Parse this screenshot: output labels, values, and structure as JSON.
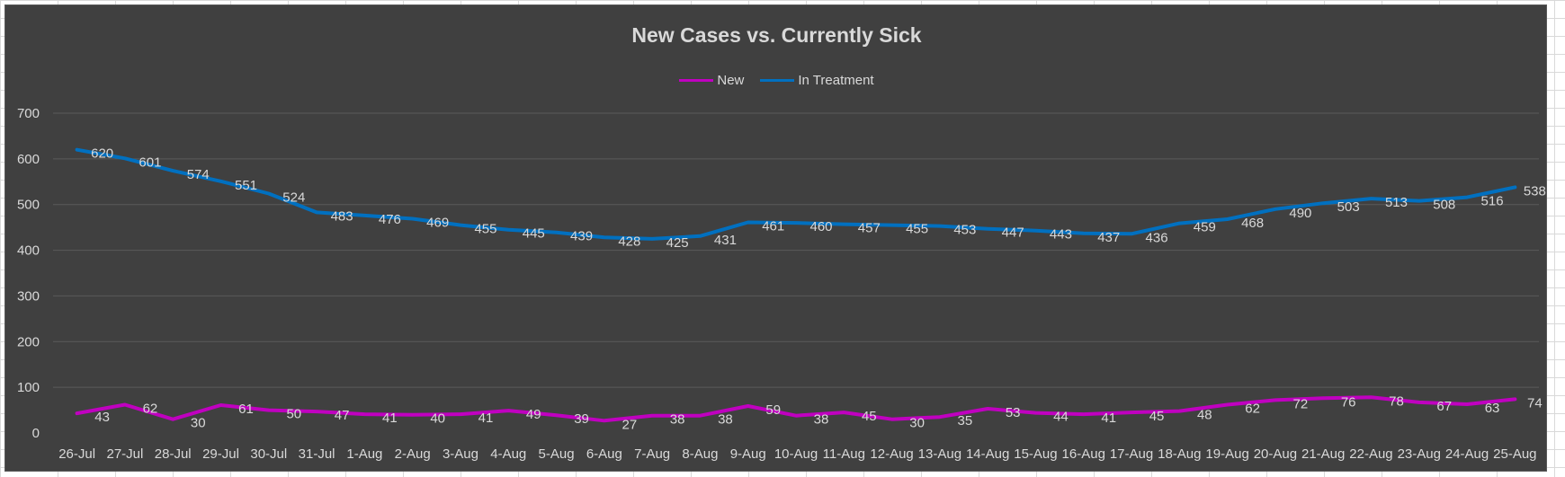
{
  "chart_data": {
    "type": "line",
    "title": "New Cases vs. Currently Sick",
    "xlabel": "",
    "ylabel": "",
    "ylim": [
      0,
      700
    ],
    "yticks": [
      0,
      100,
      200,
      300,
      400,
      500,
      600,
      700
    ],
    "grid": true,
    "legend_position": "top",
    "categories": [
      "26-Jul",
      "27-Jul",
      "28-Jul",
      "29-Jul",
      "30-Jul",
      "31-Jul",
      "1-Aug",
      "2-Aug",
      "3-Aug",
      "4-Aug",
      "5-Aug",
      "6-Aug",
      "7-Aug",
      "8-Aug",
      "9-Aug",
      "10-Aug",
      "11-Aug",
      "12-Aug",
      "13-Aug",
      "14-Aug",
      "15-Aug",
      "16-Aug",
      "17-Aug",
      "18-Aug",
      "19-Aug",
      "20-Aug",
      "21-Aug",
      "22-Aug",
      "23-Aug",
      "24-Aug",
      "25-Aug"
    ],
    "series": [
      {
        "name": "New",
        "color": "#c000c0",
        "values": [
          43,
          62,
          30,
          61,
          50,
          47,
          41,
          40,
          41,
          49,
          39,
          27,
          38,
          38,
          59,
          38,
          45,
          30,
          35,
          53,
          44,
          41,
          45,
          48,
          62,
          72,
          76,
          78,
          67,
          63,
          74
        ],
        "data_labels": [
          "43",
          "62",
          "30",
          "61",
          "50",
          "47",
          "41",
          "40",
          "41",
          "49",
          "39",
          "27",
          "38",
          "38",
          "59",
          "38",
          "45",
          "30",
          "35",
          "53",
          "44",
          "41",
          "45",
          "48",
          "62",
          "72",
          "76",
          "78",
          "67",
          "63",
          "74"
        ]
      },
      {
        "name": "In Treatment",
        "color": "#0070c0",
        "values": [
          620,
          601,
          574,
          551,
          524,
          483,
          476,
          469,
          455,
          445,
          439,
          428,
          425,
          431,
          461,
          460,
          457,
          455,
          453,
          447,
          443,
          437,
          436,
          459,
          468,
          490,
          503,
          513,
          508,
          516,
          538
        ],
        "data_labels": [
          "620",
          "601",
          "574",
          "551",
          "524",
          "483",
          "476",
          "469",
          "455",
          "445",
          "439",
          "428",
          "425",
          "431",
          "461",
          "460",
          "457",
          "455",
          "453",
          "447",
          "443",
          "437",
          "436",
          "459",
          "468",
          "490",
          "503",
          "513",
          "508",
          "516",
          "538"
        ]
      }
    ]
  }
}
